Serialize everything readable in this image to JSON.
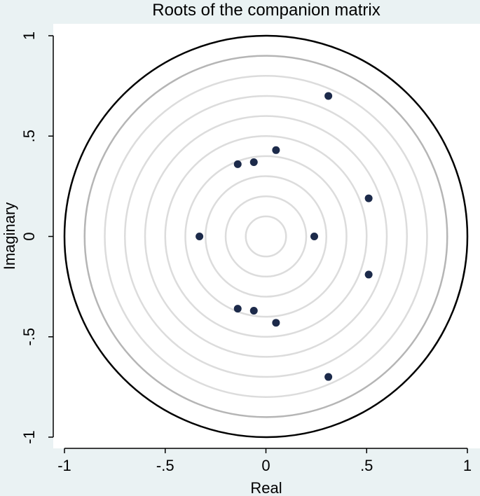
{
  "chart_data": {
    "type": "scatter",
    "title": "Roots of the companion matrix",
    "xlabel": "Real",
    "ylabel": "Imaginary",
    "xlim": [
      -1,
      1
    ],
    "ylim": [
      -1,
      1
    ],
    "xticks": [
      {
        "value": -1,
        "label": "-1"
      },
      {
        "value": -0.5,
        "label": "-.5"
      },
      {
        "value": 0,
        "label": "0"
      },
      {
        "value": 0.5,
        "label": ".5"
      },
      {
        "value": 1,
        "label": "1"
      }
    ],
    "yticks": [
      {
        "value": -1,
        "label": "-1"
      },
      {
        "value": -0.5,
        "label": "-.5"
      },
      {
        "value": 0,
        "label": "0"
      },
      {
        "value": 0.5,
        "label": ".5"
      },
      {
        "value": 1,
        "label": "1"
      }
    ],
    "grid": false,
    "reference_circles": {
      "unit_circle_radius": 1,
      "inner_radii": [
        0.9,
        0.8,
        0.7,
        0.6,
        0.5,
        0.4,
        0.3,
        0.2,
        0.1
      ]
    },
    "points": [
      {
        "x": 0.31,
        "y": 0.7
      },
      {
        "x": 0.31,
        "y": -0.7
      },
      {
        "x": 0.05,
        "y": 0.43
      },
      {
        "x": 0.05,
        "y": -0.43
      },
      {
        "x": -0.06,
        "y": 0.37
      },
      {
        "x": -0.06,
        "y": -0.37
      },
      {
        "x": -0.14,
        "y": 0.36
      },
      {
        "x": -0.14,
        "y": -0.36
      },
      {
        "x": 0.51,
        "y": 0.19
      },
      {
        "x": 0.51,
        "y": -0.19
      },
      {
        "x": 0.24,
        "y": 0.0
      },
      {
        "x": -0.33,
        "y": 0.0
      }
    ],
    "colors": {
      "background": "#eaf2f3",
      "plot_region": "#ffffff",
      "points": "#1c2a4a",
      "unit_circle": "#000000",
      "outer_ring": "#b5b5b5",
      "inner_rings": "#dcdcdc"
    }
  }
}
